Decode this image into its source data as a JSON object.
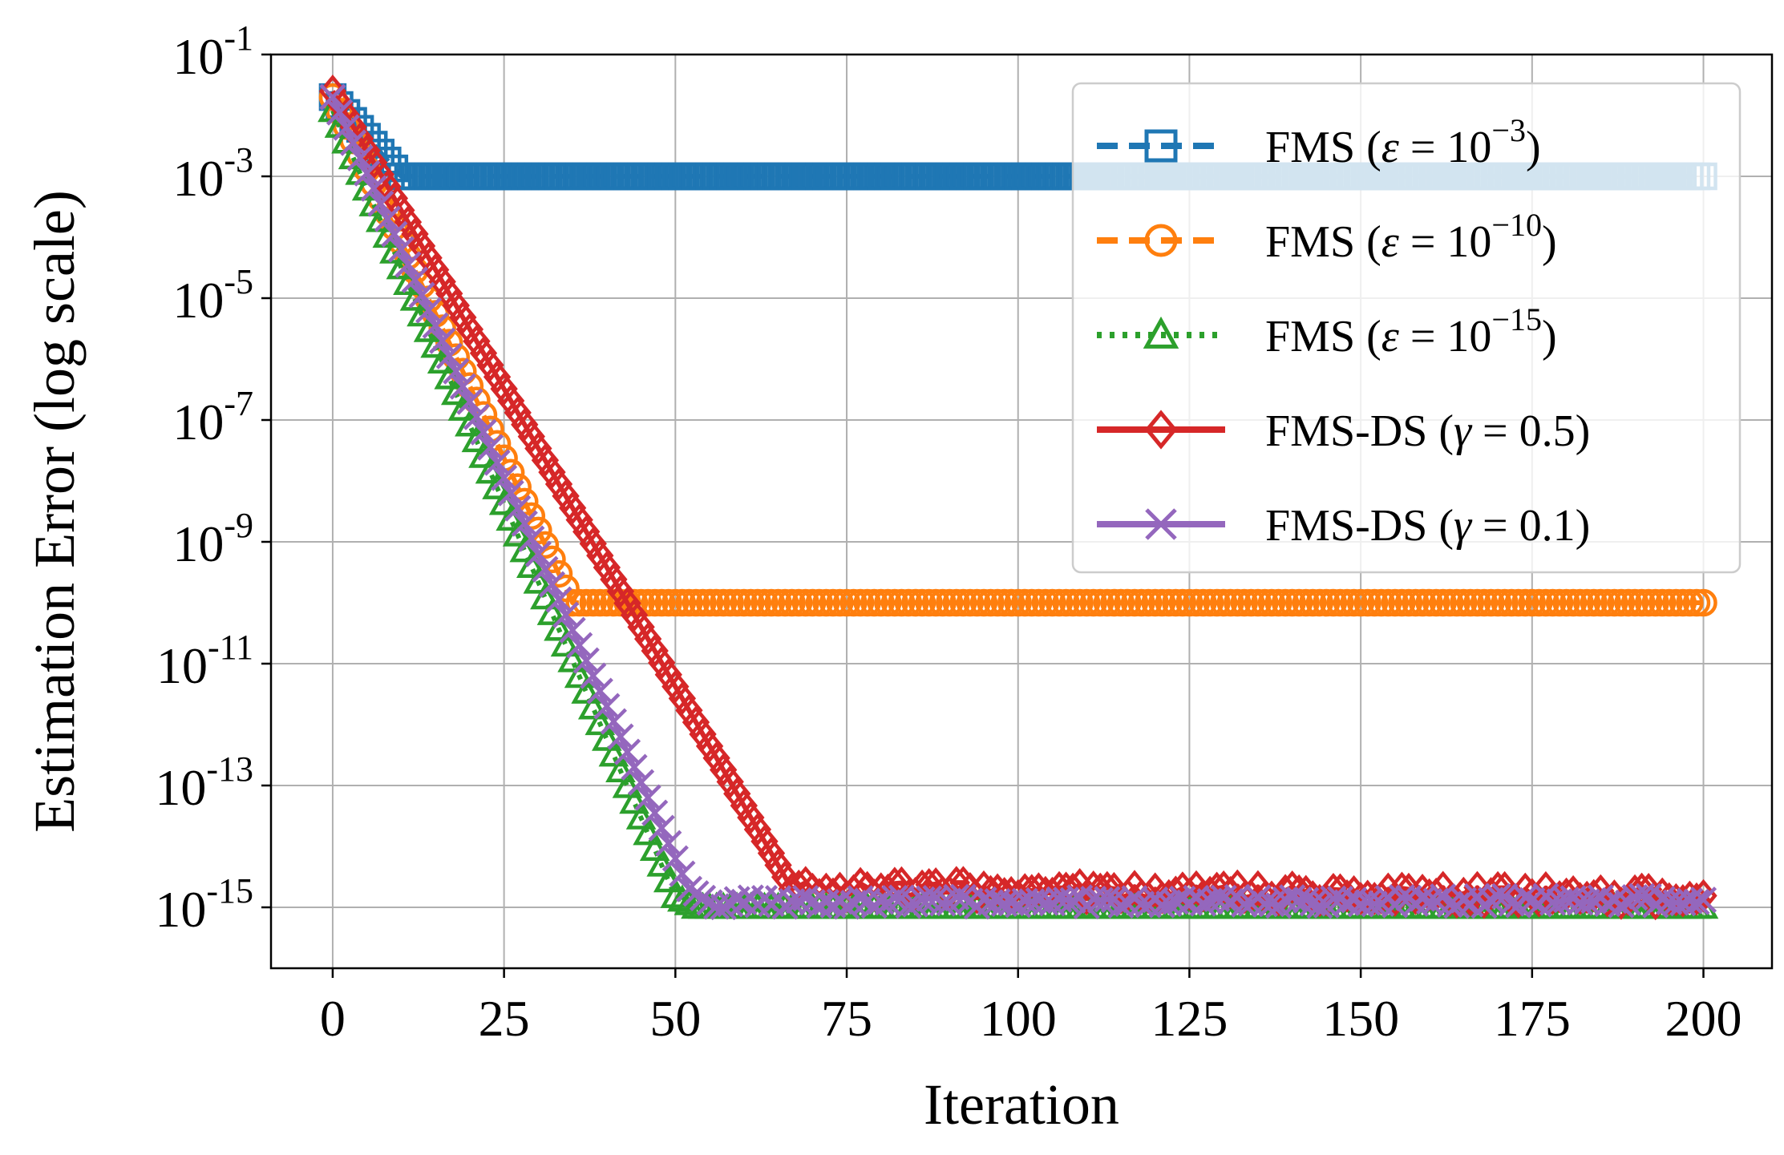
{
  "chart_data": {
    "type": "line",
    "xlabel": "Iteration",
    "ylabel": "Estimation Error (log scale)",
    "y_scale": "log",
    "xlim": [
      -9,
      210
    ],
    "ylim": [
      1e-16,
      0.1
    ],
    "x_ticks": [
      0,
      25,
      50,
      75,
      100,
      125,
      150,
      175,
      200
    ],
    "x_tick_labels": [
      "0",
      "25",
      "50",
      "75",
      "100",
      "125",
      "150",
      "175",
      "200"
    ],
    "y_tick_values": [
      0.1,
      0.001,
      1e-05,
      1e-07,
      1e-09,
      1e-11,
      1e-13,
      1e-15
    ],
    "y_tick_exponents": [
      "-1",
      "-3",
      "-5",
      "-7",
      "-9",
      "-11",
      "-13",
      "-15"
    ],
    "grid": true,
    "legend_position": "top-right",
    "colors": {
      "blue": "#1f77b4",
      "orange": "#ff7f0e",
      "green": "#2ca02c",
      "red": "#d62728",
      "purple": "#9467bd",
      "grid": "#b0b0b0"
    },
    "series": [
      {
        "key": "fms_eps3",
        "name": "FMS (ε = 10^−3)",
        "label_prefix": "FMS (",
        "label_sym": "ε",
        "label_eq": " = 10",
        "label_exp": "−3",
        "label_suffix": ")",
        "color": "#1f77b4",
        "line": "dashed",
        "marker": "square",
        "x": [
          0,
          10,
          200
        ],
        "y": [
          0.02,
          0.001,
          0.001
        ]
      },
      {
        "key": "fms_eps10",
        "name": "FMS (ε = 10^−10)",
        "label_prefix": "FMS (",
        "label_sym": "ε",
        "label_eq": " = 10",
        "label_exp": "−10",
        "label_suffix": ")",
        "color": "#ff7f0e",
        "line": "dashed",
        "marker": "circle",
        "x": [
          0,
          35,
          200
        ],
        "y": [
          0.02,
          1e-10,
          1e-10
        ]
      },
      {
        "key": "fms_eps15",
        "name": "FMS (ε = 10^−15)",
        "label_prefix": "FMS (",
        "label_sym": "ε",
        "label_eq": " = 10",
        "label_exp": "−15",
        "label_suffix": ")",
        "color": "#2ca02c",
        "line": "dotted",
        "marker": "triangle",
        "x": [
          0,
          50,
          53,
          200
        ],
        "y": [
          0.012,
          1.5e-15,
          1e-15,
          1e-15
        ]
      },
      {
        "key": "fmsds_g05",
        "name": "FMS-DS (γ = 0.5)",
        "label_prefix": "FMS-DS (",
        "label_sym": "γ",
        "label_eq": " = 0.5",
        "label_exp": "",
        "label_suffix": ")",
        "color": "#d62728",
        "line": "solid",
        "marker": "diamond",
        "x": [
          0,
          67,
          200
        ],
        "y": [
          0.025,
          2e-15,
          1.5e-15
        ]
      },
      {
        "key": "fmsds_g01",
        "name": "FMS-DS (γ = 0.1)",
        "label_prefix": "FMS-DS (",
        "label_sym": "γ",
        "label_eq": " = 0.1",
        "label_exp": "",
        "label_suffix": ")",
        "color": "#9467bd",
        "line": "solid",
        "marker": "x",
        "x": [
          0,
          52,
          55,
          200
        ],
        "y": [
          0.02,
          2e-15,
          1.2e-15,
          1.3e-15
        ]
      }
    ]
  }
}
